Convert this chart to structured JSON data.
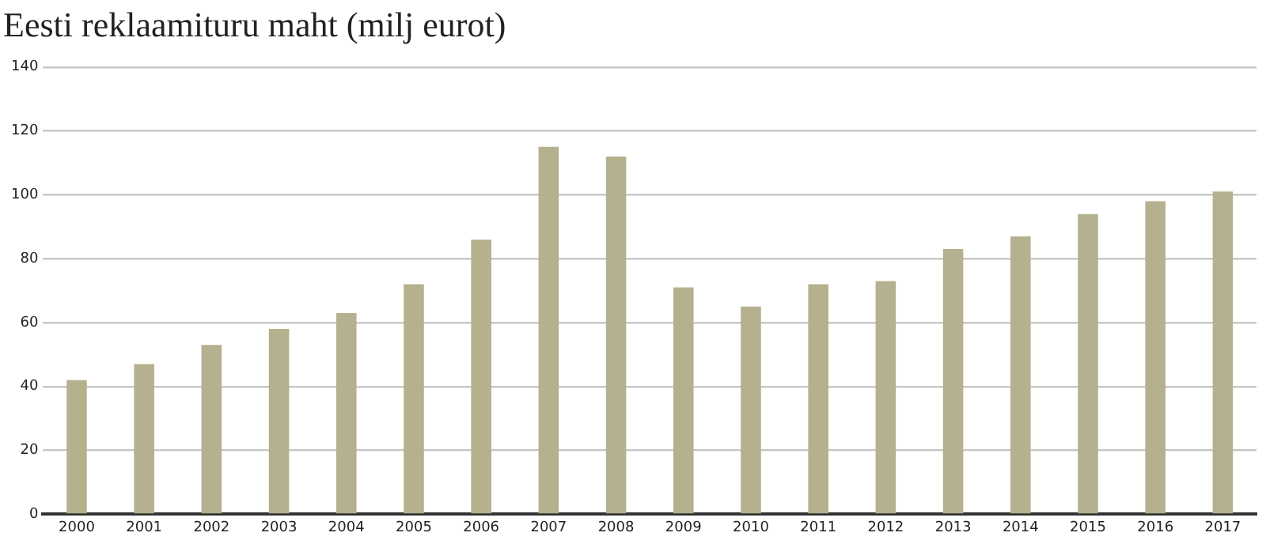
{
  "chart_data": {
    "type": "bar",
    "title": "Eesti reklaamituru maht (milj eurot)",
    "categories": [
      "2000",
      "2001",
      "2002",
      "2003",
      "2004",
      "2005",
      "2006",
      "2007",
      "2008",
      "2009",
      "2010",
      "2011",
      "2012",
      "2013",
      "2014",
      "2015",
      "2016",
      "2017"
    ],
    "values": [
      42,
      47,
      53,
      58,
      63,
      72,
      86,
      115,
      112,
      71,
      65,
      72,
      73,
      83,
      87,
      94,
      98,
      101
    ],
    "color": "#b5b08d",
    "ylim": [
      0,
      140
    ],
    "yticks": [
      0,
      20,
      40,
      60,
      80,
      100,
      120,
      140
    ],
    "grid": "y",
    "legend": false
  }
}
